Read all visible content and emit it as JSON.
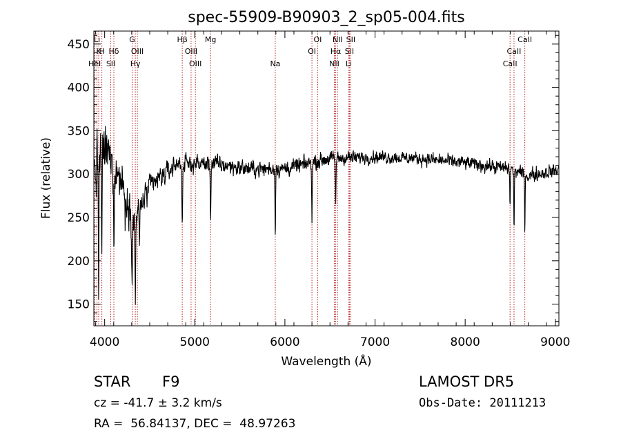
{
  "chart_data": {
    "type": "line",
    "title": "spec-55909-B90903_2_sp05-004.fits",
    "xlabel": "Wavelength (Å)",
    "ylabel": "Flux (relative)",
    "xlim": [
      3880,
      9040
    ],
    "ylim": [
      125,
      465
    ],
    "xticks": [
      4000,
      5000,
      6000,
      7000,
      8000,
      9000
    ],
    "yticks": [
      150,
      200,
      250,
      300,
      350,
      400,
      450
    ],
    "grid": false,
    "line_color": "#000000",
    "marker_color": "#b22222",
    "line_markers": [
      {
        "label": "Li",
        "x": 3915,
        "row": 0
      },
      {
        "label": "K",
        "x": 3934,
        "row": 1
      },
      {
        "label": "HeI",
        "x": 3889,
        "row": 2
      },
      {
        "label": "H",
        "x": 3969,
        "row": 1
      },
      {
        "label": "Hδ",
        "x": 4102,
        "row": 1
      },
      {
        "label": "SII",
        "x": 4068,
        "row": 2
      },
      {
        "label": "G",
        "x": 4305,
        "row": 0
      },
      {
        "label": "OIII",
        "x": 4363,
        "row": 1
      },
      {
        "label": "Hγ",
        "x": 4340,
        "row": 2
      },
      {
        "label": "Hβ",
        "x": 4861,
        "row": 0
      },
      {
        "label": "OIII",
        "x": 4959,
        "row": 1
      },
      {
        "label": "OIII",
        "x": 5007,
        "row": 2
      },
      {
        "label": "Mg",
        "x": 5175,
        "row": 0
      },
      {
        "label": "Na",
        "x": 5893,
        "row": 2
      },
      {
        "label": "OI",
        "x": 6300,
        "row": 1
      },
      {
        "label": "OI",
        "x": 6364,
        "row": 0
      },
      {
        "label": "NII",
        "x": 6548,
        "row": 2
      },
      {
        "label": "Hα",
        "x": 6563,
        "row": 1
      },
      {
        "label": "NII",
        "x": 6584,
        "row": 0
      },
      {
        "label": "SII",
        "x": 6716,
        "row": 1
      },
      {
        "label": "SII",
        "x": 6731,
        "row": 0
      },
      {
        "label": "Li",
        "x": 6708,
        "row": 2
      },
      {
        "label": "CaII",
        "x": 8498,
        "row": 2
      },
      {
        "label": "CaII",
        "x": 8542,
        "row": 1
      },
      {
        "label": "CaII",
        "x": 8662,
        "row": 0
      }
    ],
    "spectrum": {
      "continuum": [
        [
          3890,
          300
        ],
        [
          4000,
          330
        ],
        [
          4200,
          290
        ],
        [
          4320,
          245
        ],
        [
          4500,
          285
        ],
        [
          4800,
          312
        ],
        [
          5200,
          312
        ],
        [
          5600,
          306
        ],
        [
          6000,
          306
        ],
        [
          6500,
          318
        ],
        [
          7000,
          320
        ],
        [
          7500,
          318
        ],
        [
          8000,
          313
        ],
        [
          8500,
          306
        ],
        [
          8700,
          298
        ],
        [
          9040,
          305
        ]
      ],
      "absorption": [
        {
          "x": 3934,
          "depth": 150,
          "width": 3
        },
        {
          "x": 3969,
          "depth": 140,
          "width": 3
        },
        {
          "x": 4102,
          "depth": 90,
          "width": 4
        },
        {
          "x": 4227,
          "depth": 50,
          "width": 3
        },
        {
          "x": 4305,
          "depth": 60,
          "width": 5
        },
        {
          "x": 4340,
          "depth": 90,
          "width": 4
        },
        {
          "x": 4385,
          "depth": 40,
          "width": 4
        },
        {
          "x": 4861,
          "depth": 70,
          "width": 4
        },
        {
          "x": 5175,
          "depth": 65,
          "width": 4
        },
        {
          "x": 5893,
          "depth": 80,
          "width": 3
        },
        {
          "x": 6300,
          "depth": 70,
          "width": 3
        },
        {
          "x": 6563,
          "depth": 50,
          "width": 4
        },
        {
          "x": 8498,
          "depth": 45,
          "width": 3
        },
        {
          "x": 8542,
          "depth": 75,
          "width": 3
        },
        {
          "x": 8662,
          "depth": 60,
          "width": 3
        }
      ],
      "noise": [
        {
          "x": 3890,
          "amp": 45
        },
        {
          "x": 4100,
          "amp": 32
        },
        {
          "x": 4400,
          "amp": 20
        },
        {
          "x": 4800,
          "amp": 13
        },
        {
          "x": 6000,
          "amp": 11
        },
        {
          "x": 7000,
          "amp": 9
        },
        {
          "x": 9040,
          "amp": 10
        }
      ]
    }
  },
  "info": {
    "object_class": "STAR",
    "subclass": "F9",
    "survey": "LAMOST DR5",
    "velocity": "cz = -41.7 ± 3.2 km/s",
    "obs_date": "Obs-Date: 20111213",
    "coordinates": "RA =  56.84137, DEC =  48.97263"
  }
}
